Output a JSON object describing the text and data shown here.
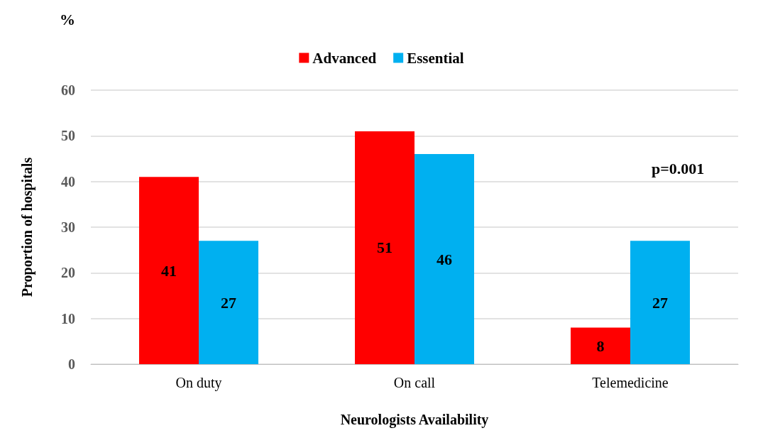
{
  "chart_data": {
    "type": "bar",
    "xlabel": "Neurologists Availability",
    "ylabel": "Proportion of hospitals",
    "categories": [
      "On duty",
      "On call",
      "Telemedicine"
    ],
    "series": [
      {
        "name": "Advanced",
        "color": "#ff0000",
        "values": [
          41,
          51,
          8
        ]
      },
      {
        "name": "Essential",
        "color": "#00b0f0",
        "values": [
          27,
          46,
          27
        ]
      }
    ],
    "ylim": [
      0,
      60
    ],
    "yticks": [
      0,
      10,
      20,
      30,
      40,
      50,
      60
    ],
    "grid": "y",
    "legend": "top",
    "data_labels": true,
    "annotations": [
      "%",
      "p=0.001"
    ]
  }
}
